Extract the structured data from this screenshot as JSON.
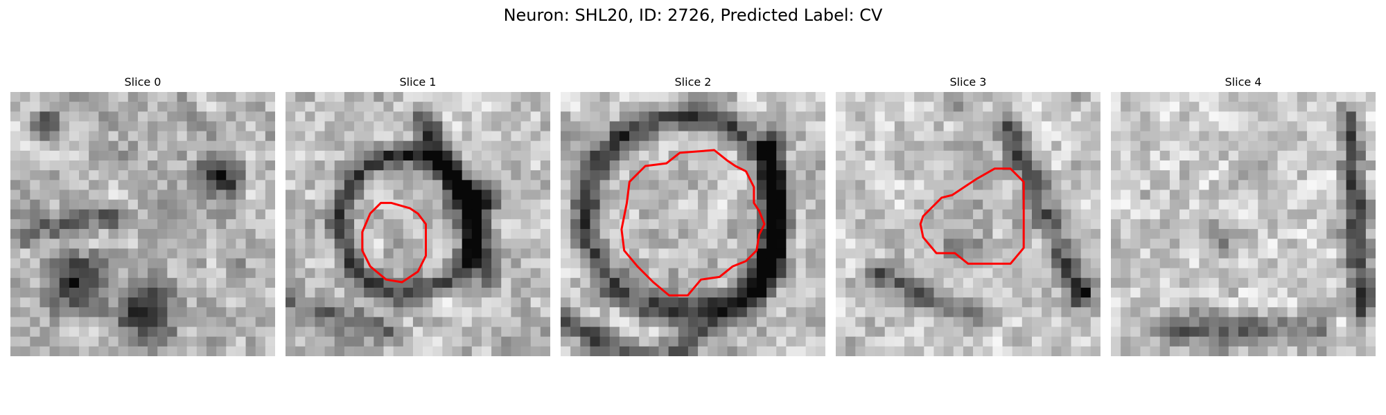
{
  "figure": {
    "title": "Neuron: SHL20, ID: 2726, Predicted Label: CV"
  },
  "panels": [
    {
      "title": "Slice 0",
      "has_outline": false,
      "outline_color": "#ff0000"
    },
    {
      "title": "Slice 1",
      "has_outline": true,
      "outline_color": "#ff0000"
    },
    {
      "title": "Slice 2",
      "has_outline": true,
      "outline_color": "#ff0000"
    },
    {
      "title": "Slice 3",
      "has_outline": true,
      "outline_color": "#ff0000"
    },
    {
      "title": "Slice 4",
      "has_outline": false,
      "outline_color": "#ff0000"
    }
  ],
  "colormap": "gray"
}
